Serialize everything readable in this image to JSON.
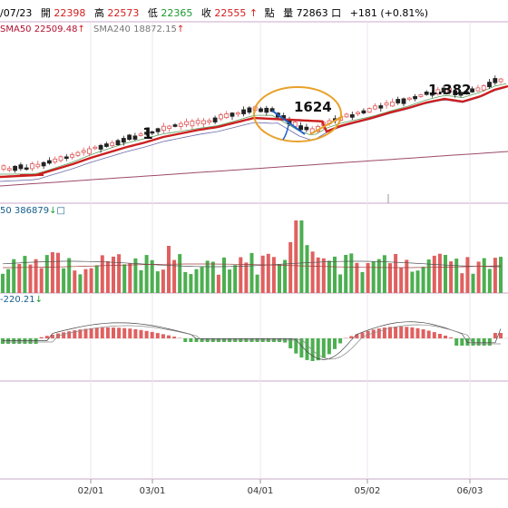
{
  "header": {
    "date": "/07/23",
    "open_label": "開",
    "open_value": "22398",
    "high_label": "高",
    "high_value": "22573",
    "low_label": "低",
    "low_value": "22365",
    "close_label": "收",
    "close_value": "22555",
    "close_arrow": "↑",
    "unit_label": "點",
    "volume_label": "量",
    "volume_value": "72863",
    "volume_unit": "口",
    "change_text": "+181 (+0.81%)"
  },
  "price_legend": {
    "sma50": "SMA50 22509.48",
    "sma50_arrow": "↑",
    "sma240": "SMA240 18872.15",
    "sma240_arrow": "↑"
  },
  "volume_legend": {
    "text": "50 386879",
    "arrow": "↓",
    "box": "□"
  },
  "macd_legend": {
    "text": "-220.21",
    "arrow": "↓"
  },
  "annotations": {
    "label_1": "1",
    "label_1624": "1624",
    "label_1382": "1.382"
  },
  "x_axis_ticks": [
    "02/01",
    "03/01",
    "04/01",
    "05/02",
    "06/03"
  ],
  "colors": {
    "up": "#e05555",
    "down": "#222222",
    "sma50": "#cc1f1f",
    "sma240": "#9c4a6a",
    "vol_up": "#e06060",
    "vol_down": "#4caf50",
    "macd_pos": "#e06060",
    "macd_neg": "#4caf50",
    "annot_circle": "#e8a12a",
    "annot_blue": "#2060c8",
    "panel_border": "#c8a8c8"
  },
  "chart_data": {
    "type": "candlestick",
    "title": "",
    "x_ticks": [
      "02/01",
      "03/01",
      "04/01",
      "05/02",
      "06/03"
    ],
    "price_series": {
      "close_trend": [
        17400,
        17500,
        17900,
        18400,
        19000,
        19600,
        20100,
        20900,
        21300,
        20600,
        20300,
        20900,
        21500,
        22100,
        22400,
        22555
      ],
      "last": {
        "open": 22398,
        "high": 22573,
        "low": 22365,
        "close": 22555
      }
    },
    "sma50_last": 22509.48,
    "sma240_last": 18872.15,
    "volume_last": 72863,
    "volume_ma_last": 386879,
    "macd_last": -220.21,
    "annotations": [
      "1",
      "1624",
      "1.382"
    ]
  }
}
